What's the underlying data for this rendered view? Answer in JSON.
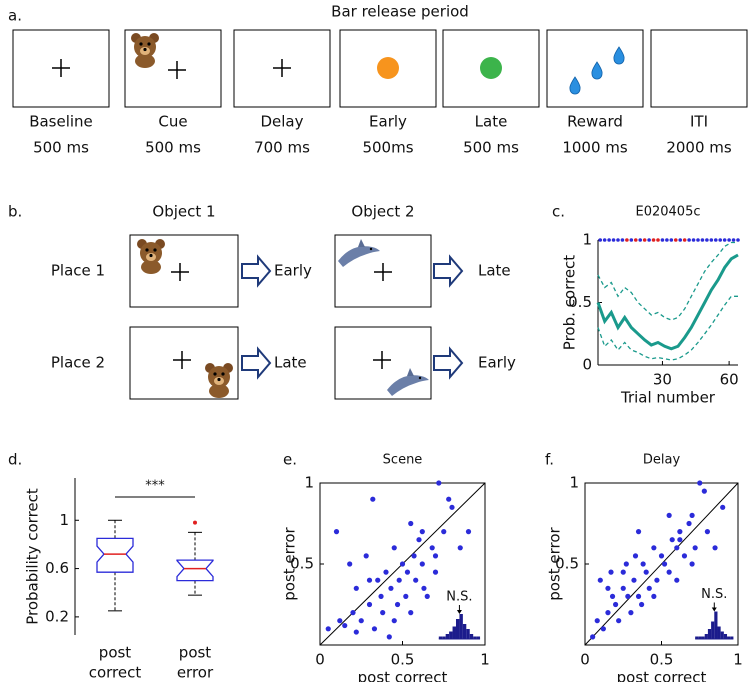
{
  "panel_a": {
    "label": "a.",
    "title": "Bar release period",
    "frames": [
      {
        "name": "Baseline",
        "duration": "500 ms"
      },
      {
        "name": "Cue",
        "duration": "500 ms"
      },
      {
        "name": "Delay",
        "duration": "700 ms"
      },
      {
        "name": "Early",
        "duration": "500ms"
      },
      {
        "name": "Late",
        "duration": "500 ms"
      },
      {
        "name": "Reward",
        "duration": "1000 ms"
      },
      {
        "name": "ITI",
        "duration": "2000 ms"
      }
    ]
  },
  "panel_b": {
    "label": "b.",
    "columns": [
      "Object 1",
      "Object 2"
    ],
    "rows": [
      "Place 1",
      "Place 2"
    ],
    "outcomes": [
      [
        "Early",
        "Late"
      ],
      [
        "Late",
        "Early"
      ]
    ]
  },
  "chart_data": [
    {
      "type": "line",
      "label": "c.",
      "title": "E020405c",
      "x_label": "Trial number",
      "y_label": "Prob. correct",
      "xlim": [
        1,
        64
      ],
      "ylim": [
        0,
        1
      ],
      "xticks": [
        30,
        60
      ],
      "yticks": [
        0,
        0.5,
        1
      ],
      "x": [
        1,
        4,
        7,
        10,
        13,
        16,
        19,
        22,
        25,
        28,
        31,
        34,
        37,
        40,
        43,
        46,
        49,
        52,
        55,
        58,
        61,
        64
      ],
      "series": [
        {
          "color": "#1a9a8c",
          "style": "solid",
          "values": [
            0.5,
            0.35,
            0.42,
            0.3,
            0.38,
            0.3,
            0.25,
            0.2,
            0.16,
            0.18,
            0.15,
            0.13,
            0.15,
            0.22,
            0.3,
            0.4,
            0.5,
            0.6,
            0.68,
            0.78,
            0.85,
            0.88
          ]
        },
        {
          "color": "#1a9a8c",
          "style": "dashed",
          "values": [
            0.72,
            0.62,
            0.66,
            0.55,
            0.62,
            0.58,
            0.5,
            0.45,
            0.4,
            0.42,
            0.38,
            0.36,
            0.38,
            0.45,
            0.55,
            0.65,
            0.75,
            0.82,
            0.88,
            0.95,
            0.98,
            0.98
          ]
        },
        {
          "color": "#1a9a8c",
          "style": "dashed",
          "values": [
            0.3,
            0.15,
            0.2,
            0.12,
            0.18,
            0.12,
            0.1,
            0.07,
            0.05,
            0.06,
            0.05,
            0.04,
            0.05,
            0.08,
            0.12,
            0.18,
            0.25,
            0.32,
            0.4,
            0.48,
            0.55,
            0.55
          ]
        },
        {
          "color": "#2b2bd9",
          "style": "dots",
          "x": [
            2,
            4,
            6,
            8,
            10,
            12,
            14,
            16,
            18,
            20,
            22,
            24,
            26,
            28,
            30,
            32,
            34,
            36,
            38,
            40,
            42,
            44,
            46,
            48,
            50,
            52,
            54,
            56,
            58,
            60,
            62,
            64
          ],
          "values": [
            1,
            1,
            1,
            1,
            1,
            1,
            null,
            1,
            null,
            1,
            null,
            1,
            null,
            null,
            1,
            1,
            1,
            null,
            1,
            null,
            1,
            1,
            1,
            1,
            1,
            1,
            1,
            1,
            1,
            1,
            1,
            1
          ]
        },
        {
          "color": "#e02020",
          "style": "dots",
          "x": [
            2,
            4,
            6,
            8,
            10,
            12,
            14,
            16,
            18,
            20,
            22,
            24,
            26,
            28,
            30,
            32,
            34,
            36,
            38,
            40,
            42,
            44,
            46,
            48,
            50,
            52,
            54,
            56,
            58,
            60,
            62,
            64
          ],
          "values": [
            null,
            null,
            null,
            null,
            null,
            null,
            1,
            null,
            1,
            null,
            1,
            null,
            1,
            1,
            null,
            null,
            null,
            1,
            null,
            1,
            null,
            null,
            null,
            null,
            null,
            null,
            null,
            null,
            null,
            null,
            null,
            null
          ]
        }
      ]
    },
    {
      "type": "box",
      "label": "d.",
      "y_label": "Probability correct",
      "annotation": "***",
      "categories": [
        [
          "post",
          "correct"
        ],
        [
          "post",
          "error"
        ]
      ],
      "ylim": [
        0.05,
        1.35
      ],
      "yticks": [
        0.2,
        0.6,
        1
      ],
      "color": "#2b2bd9",
      "median_color": "#e02020",
      "boxes": [
        {
          "min": 0.25,
          "q1": 0.57,
          "median": 0.72,
          "q3": 0.85,
          "max": 1.0,
          "outliers": []
        },
        {
          "min": 0.38,
          "q1": 0.5,
          "median": 0.6,
          "q3": 0.67,
          "max": 0.9,
          "outliers": [
            0.98
          ]
        }
      ]
    },
    {
      "type": "scatter",
      "label": "e.",
      "title": "Scene",
      "x_label": "post correct",
      "y_label": "post error",
      "xlim": [
        0,
        1
      ],
      "ylim": [
        0,
        1
      ],
      "xticks": [
        0,
        0.5,
        1
      ],
      "yticks": [
        0.5,
        1
      ],
      "color": "#2b2bd9",
      "x": [
        0.05,
        0.1,
        0.12,
        0.15,
        0.18,
        0.2,
        0.22,
        0.25,
        0.28,
        0.3,
        0.32,
        0.33,
        0.35,
        0.37,
        0.38,
        0.4,
        0.42,
        0.43,
        0.45,
        0.47,
        0.48,
        0.5,
        0.52,
        0.53,
        0.55,
        0.57,
        0.58,
        0.6,
        0.62,
        0.63,
        0.65,
        0.68,
        0.7,
        0.72,
        0.75,
        0.78,
        0.8,
        0.85,
        0.9,
        0.22,
        0.3,
        0.45,
        0.55,
        0.62,
        0.7
      ],
      "values": [
        0.1,
        0.7,
        0.15,
        0.12,
        0.5,
        0.2,
        0.35,
        0.15,
        0.55,
        0.25,
        0.9,
        0.1,
        0.4,
        0.3,
        0.2,
        0.45,
        0.05,
        0.35,
        0.6,
        0.25,
        0.4,
        0.5,
        0.3,
        0.45,
        0.2,
        0.55,
        0.4,
        0.65,
        0.5,
        0.35,
        0.3,
        0.6,
        0.45,
        1.0,
        0.7,
        0.9,
        0.85,
        0.6,
        0.7,
        0.08,
        0.4,
        0.15,
        0.75,
        0.7,
        0.55
      ],
      "inset": {
        "annotation": "N.S.",
        "color": "#1c1c8c",
        "bins": [
          -0.3,
          -0.25,
          -0.2,
          -0.15,
          -0.1,
          -0.05,
          0,
          0.05,
          0.1,
          0.15,
          0.2,
          0.25,
          0.3
        ],
        "counts": [
          1,
          1,
          2,
          3,
          5,
          8,
          10,
          6,
          4,
          2,
          1,
          1
        ]
      }
    },
    {
      "type": "scatter",
      "label": "f.",
      "title": "Delay",
      "x_label": "post correct",
      "y_label": "post error",
      "xlim": [
        0,
        1
      ],
      "ylim": [
        0,
        1
      ],
      "xticks": [
        0,
        0.5,
        1
      ],
      "yticks": [
        0.5,
        1
      ],
      "color": "#2b2bd9",
      "x": [
        0.05,
        0.08,
        0.1,
        0.12,
        0.15,
        0.17,
        0.18,
        0.2,
        0.22,
        0.25,
        0.27,
        0.28,
        0.3,
        0.32,
        0.33,
        0.35,
        0.37,
        0.38,
        0.4,
        0.42,
        0.45,
        0.47,
        0.5,
        0.52,
        0.55,
        0.57,
        0.6,
        0.62,
        0.65,
        0.68,
        0.7,
        0.72,
        0.75,
        0.78,
        0.8,
        0.85,
        0.9,
        0.15,
        0.25,
        0.35,
        0.45,
        0.55,
        0.6,
        0.7,
        0.62
      ],
      "values": [
        0.05,
        0.15,
        0.4,
        0.1,
        0.2,
        0.45,
        0.3,
        0.25,
        0.15,
        0.35,
        0.5,
        0.3,
        0.2,
        0.4,
        0.55,
        0.3,
        0.25,
        0.5,
        0.45,
        0.35,
        0.6,
        0.4,
        0.55,
        0.5,
        0.45,
        0.65,
        0.6,
        0.7,
        0.55,
        0.75,
        0.8,
        0.6,
        1.0,
        0.95,
        0.7,
        0.6,
        0.85,
        0.35,
        0.45,
        0.7,
        0.3,
        0.8,
        0.4,
        0.5,
        0.65
      ],
      "inset": {
        "annotation": "N.S.",
        "color": "#1c1c8c",
        "bins": [
          -0.3,
          -0.25,
          -0.2,
          -0.15,
          -0.1,
          -0.05,
          0,
          0.05,
          0.1,
          0.15,
          0.2,
          0.25,
          0.3
        ],
        "counts": [
          1,
          1,
          1,
          2,
          4,
          7,
          11,
          5,
          3,
          2,
          1,
          1
        ]
      }
    }
  ]
}
